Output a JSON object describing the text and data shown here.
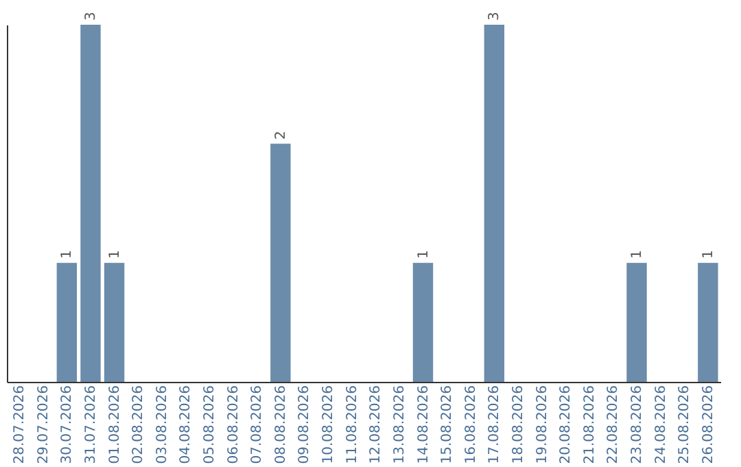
{
  "chart_data": {
    "type": "bar",
    "categories": [
      "28.07.2026",
      "29.07.2026",
      "30.07.2026",
      "31.07.2026",
      "01.08.2026",
      "02.08.2026",
      "03.08.2026",
      "04.08.2026",
      "05.08.2026",
      "06.08.2026",
      "07.08.2026",
      "08.08.2026",
      "09.08.2026",
      "10.08.2026",
      "11.08.2026",
      "12.08.2026",
      "13.08.2026",
      "14.08.2026",
      "15.08.2026",
      "16.08.2026",
      "17.08.2026",
      "18.08.2026",
      "19.08.2026",
      "20.08.2026",
      "21.08.2026",
      "22.08.2026",
      "23.08.2026",
      "24.08.2026",
      "25.08.2026",
      "26.08.2026"
    ],
    "values": [
      null,
      null,
      1,
      3,
      1,
      null,
      null,
      null,
      null,
      null,
      null,
      2,
      null,
      null,
      null,
      null,
      null,
      1,
      null,
      null,
      3,
      null,
      null,
      null,
      null,
      null,
      1,
      null,
      null,
      1
    ],
    "color": "#6b8cab",
    "ylim": [
      0,
      3
    ],
    "data_labels": true,
    "tick_labels": "x"
  }
}
